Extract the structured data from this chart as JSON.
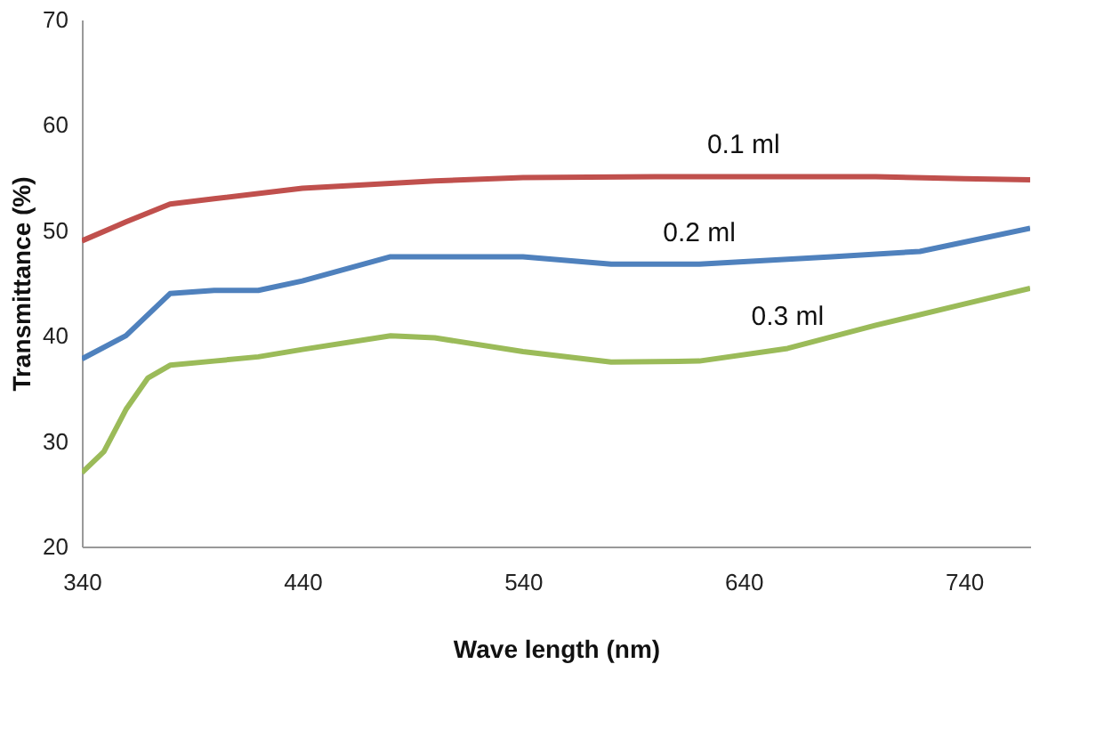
{
  "chart_data": {
    "type": "line",
    "xlabel": "Wave length (nm)",
    "ylabel": "Transmittance (%)",
    "xlim": [
      340,
      770
    ],
    "xticks": [
      340,
      440,
      540,
      640,
      740
    ],
    "ylim": [
      20,
      70
    ],
    "yticks": [
      20,
      30,
      40,
      50,
      60,
      70
    ],
    "grid": false,
    "legend": false,
    "marker": "none",
    "line_style": "solid",
    "series": [
      {
        "name": "0.1 ml",
        "color": "#c0504d",
        "x": [
          340,
          360,
          380,
          400,
          440,
          500,
          540,
          600,
          640,
          700,
          740,
          770
        ],
        "values": [
          49,
          50.8,
          52.5,
          53,
          54,
          54.7,
          55,
          55.1,
          55.1,
          55.1,
          54.9,
          54.8
        ]
      },
      {
        "name": "0.2 ml",
        "color": "#4f81bd",
        "x": [
          340,
          360,
          380,
          400,
          420,
          440,
          480,
          500,
          540,
          580,
          620,
          680,
          720,
          770
        ],
        "values": [
          37.8,
          40,
          44,
          44.3,
          44.3,
          45.2,
          47.5,
          47.5,
          47.5,
          46.8,
          46.8,
          47.5,
          48,
          50.2
        ]
      },
      {
        "name": "0.3 ml",
        "color": "#9bbb59",
        "x": [
          340,
          350,
          360,
          370,
          380,
          400,
          420,
          440,
          480,
          500,
          540,
          580,
          620,
          660,
          700,
          740,
          770
        ],
        "values": [
          27,
          29,
          33,
          36,
          37.2,
          37.6,
          38,
          38.7,
          40,
          39.8,
          38.5,
          37.5,
          37.6,
          38.8,
          41,
          43,
          44.5
        ]
      }
    ]
  }
}
